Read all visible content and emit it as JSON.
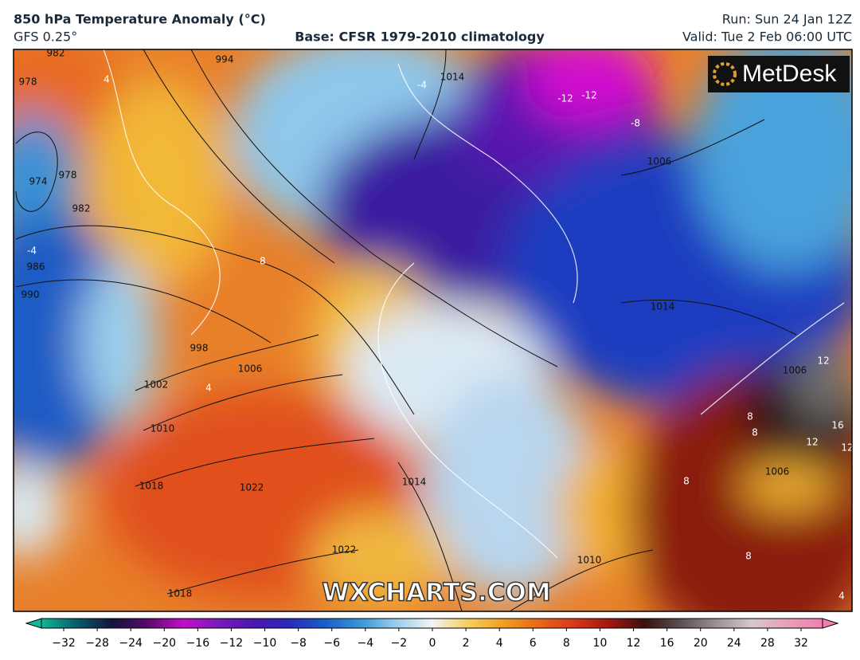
{
  "header": {
    "title": "850 hPa Temperature Anomaly (°C)",
    "model": "GFS 0.25°",
    "base": "Base: CFSR 1979-2010 climatology",
    "run": "Run: Sun 24 Jan 12Z",
    "valid": "Valid: Tue 2 Feb 06:00 UTC"
  },
  "logo": "MetDesk",
  "watermark": "WXCHARTS.COM",
  "map": {
    "isobar_labels": [
      "982",
      "978",
      "974",
      "978",
      "982",
      "986",
      "990",
      "994",
      "998",
      "1002",
      "1006",
      "1010",
      "1014",
      "1006",
      "1014",
      "1018",
      "1022",
      "1022",
      "1018",
      "1010",
      "1014",
      "1006",
      "1006"
    ],
    "anomaly_labels": [
      "-4",
      "-12",
      "-12",
      "-8",
      "12",
      "16",
      "12",
      "12",
      "8",
      "8",
      "8",
      "4",
      "8",
      "8",
      "4",
      "-4",
      "4"
    ]
  },
  "colorbar": {
    "ticks": [
      {
        "value": -32,
        "label": "−32"
      },
      {
        "value": -28,
        "label": "−28"
      },
      {
        "value": -24,
        "label": "−24"
      },
      {
        "value": -20,
        "label": "−20"
      },
      {
        "value": -16,
        "label": "−16"
      },
      {
        "value": -12,
        "label": "−12"
      },
      {
        "value": -10,
        "label": "−10"
      },
      {
        "value": -8,
        "label": "−8"
      },
      {
        "value": -6,
        "label": "−6"
      },
      {
        "value": -4,
        "label": "−4"
      },
      {
        "value": -2,
        "label": "−2"
      },
      0,
      2,
      4,
      6,
      8,
      10,
      12,
      16,
      20,
      24,
      28,
      32
    ],
    "colors": [
      "#10b89a",
      "#0a5a6a",
      "#14143a",
      "#5a0a6a",
      "#c010c8",
      "#7a1ab8",
      "#4a18b0",
      "#2a2ab8",
      "#1a5fc8",
      "#3a96d8",
      "#9ccdec",
      "#f4f4f4",
      "#f4d060",
      "#f0a020",
      "#e86818",
      "#d8381a",
      "#a01810",
      "#3a1010",
      "#5a5050",
      "#9a9090",
      "#d8c8c8",
      "#e8a0b8",
      "#f080b0"
    ]
  }
}
